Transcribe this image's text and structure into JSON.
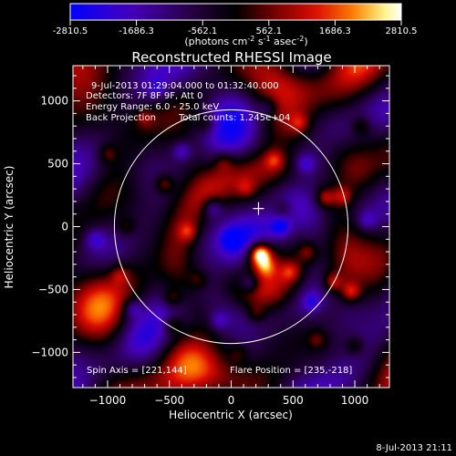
{
  "colorbar": {
    "ticks": [
      "-2810.5",
      "-1686.3",
      "-562.1",
      "562.1",
      "1686.3",
      "2810.5"
    ],
    "tick_values": [
      -2810.5,
      -1686.3,
      -562.1,
      562.1,
      1686.3,
      2810.5
    ],
    "unit_main": "(photons cm",
    "unit_exp1": "-2",
    "unit_mid": " s",
    "unit_exp2": "-1",
    "unit_mid2": " asec",
    "unit_exp3": "-2",
    "unit_end": ")",
    "colors": [
      "#0000ff",
      "#5000c0",
      "#000000",
      "#800000",
      "#e00000",
      "#ff8000",
      "#ffff80",
      "#ffffff"
    ]
  },
  "header": {
    "title": "Reconstructed RHESSI Image",
    "line1": "9-Jul-2013 01:29:04.000 to 01:32:40.000",
    "line2": "Detectors: 7F 8F 9F, Att 0",
    "line3": "Energy Range: 6.0 - 25.0 keV",
    "line4a": "Back Projection",
    "line4b": "Total counts: 1.245e+04"
  },
  "footer": {
    "spin_axis": "Spin Axis = [221,144]",
    "flare_position": "Flare Position = [235,-218]",
    "timestamp": "8-Jul-2013 21:11"
  },
  "chart_data": {
    "type": "heatmap",
    "title": "Reconstructed RHESSI Image",
    "xlabel": "Heliocentric X (arcsec)",
    "ylabel": "Heliocentric Y (arcsec)",
    "xlim": [
      -1280,
      1280
    ],
    "ylim": [
      -1280,
      1280
    ],
    "xticks": [
      -1000,
      -500,
      0,
      500,
      1000
    ],
    "yticks": [
      -1000,
      -500,
      0,
      500,
      1000
    ],
    "xtick_labels": [
      "−1000",
      "−500",
      "0",
      "500",
      "1000"
    ],
    "ytick_labels": [
      "−1000",
      "−500",
      "0",
      "500",
      "1000"
    ],
    "solar_limb_radius": 945,
    "spin_axis": [
      221,
      144
    ],
    "flare_position": [
      235,
      -218
    ],
    "cmin": -2810.5,
    "cmax": 2810.5,
    "blobs": [
      {
        "x": 235,
        "y": -218,
        "v": 2810
      },
      {
        "x": 280,
        "y": -320,
        "v": 1200
      },
      {
        "x": -540,
        "y": 340,
        "v": 1400
      },
      {
        "x": 760,
        "y": 230,
        "v": 1500
      },
      {
        "x": 900,
        "y": 240,
        "v": 1300
      },
      {
        "x": -350,
        "y": -40,
        "v": 1200
      },
      {
        "x": -480,
        "y": -570,
        "v": 1100
      },
      {
        "x": -470,
        "y": -780,
        "v": 1300
      },
      {
        "x": 350,
        "y": 530,
        "v": 1200
      },
      {
        "x": 550,
        "y": 820,
        "v": 1100
      },
      {
        "x": 820,
        "y": -440,
        "v": 1500
      },
      {
        "x": 970,
        "y": -520,
        "v": 1600
      },
      {
        "x": 480,
        "y": -360,
        "v": 1100
      },
      {
        "x": 200,
        "y": -700,
        "v": 900
      },
      {
        "x": -1000,
        "y": 580,
        "v": 1000
      },
      {
        "x": -850,
        "y": 0,
        "v": 900
      },
      {
        "x": 620,
        "y": -200,
        "v": 1000
      },
      {
        "x": 120,
        "y": 300,
        "v": 900
      },
      {
        "x": -60,
        "y": 520,
        "v": 900
      },
      {
        "x": -200,
        "y": 820,
        "v": 1000
      },
      {
        "x": 1050,
        "y": 800,
        "v": 1100
      },
      {
        "x": -900,
        "y": -380,
        "v": 1000
      },
      {
        "x": -700,
        "y": 870,
        "v": 900
      },
      {
        "x": 60,
        "y": -1000,
        "v": 800
      },
      {
        "x": 700,
        "y": -900,
        "v": 900
      },
      {
        "x": 1000,
        "y": -950,
        "v": 1000
      },
      {
        "x": -260,
        "y": -420,
        "v": 800
      },
      {
        "x": 420,
        "y": 140,
        "v": 800
      },
      {
        "x": 150,
        "y": -450,
        "v": -1500
      },
      {
        "x": 400,
        "y": 0,
        "v": -1400
      },
      {
        "x": -150,
        "y": 150,
        "v": -1400
      },
      {
        "x": 0,
        "y": -100,
        "v": -1200
      },
      {
        "x": -400,
        "y": 600,
        "v": -1300
      },
      {
        "x": -800,
        "y": -650,
        "v": -1200
      },
      {
        "x": 600,
        "y": 500,
        "v": -1200
      },
      {
        "x": -1100,
        "y": -100,
        "v": -1100
      },
      {
        "x": 650,
        "y": -600,
        "v": -1100
      },
      {
        "x": -100,
        "y": -750,
        "v": -1000
      },
      {
        "x": 1100,
        "y": 50,
        "v": -1000
      },
      {
        "x": 300,
        "y": 950,
        "v": -900
      },
      {
        "x": -600,
        "y": 1100,
        "v": -900
      }
    ]
  }
}
